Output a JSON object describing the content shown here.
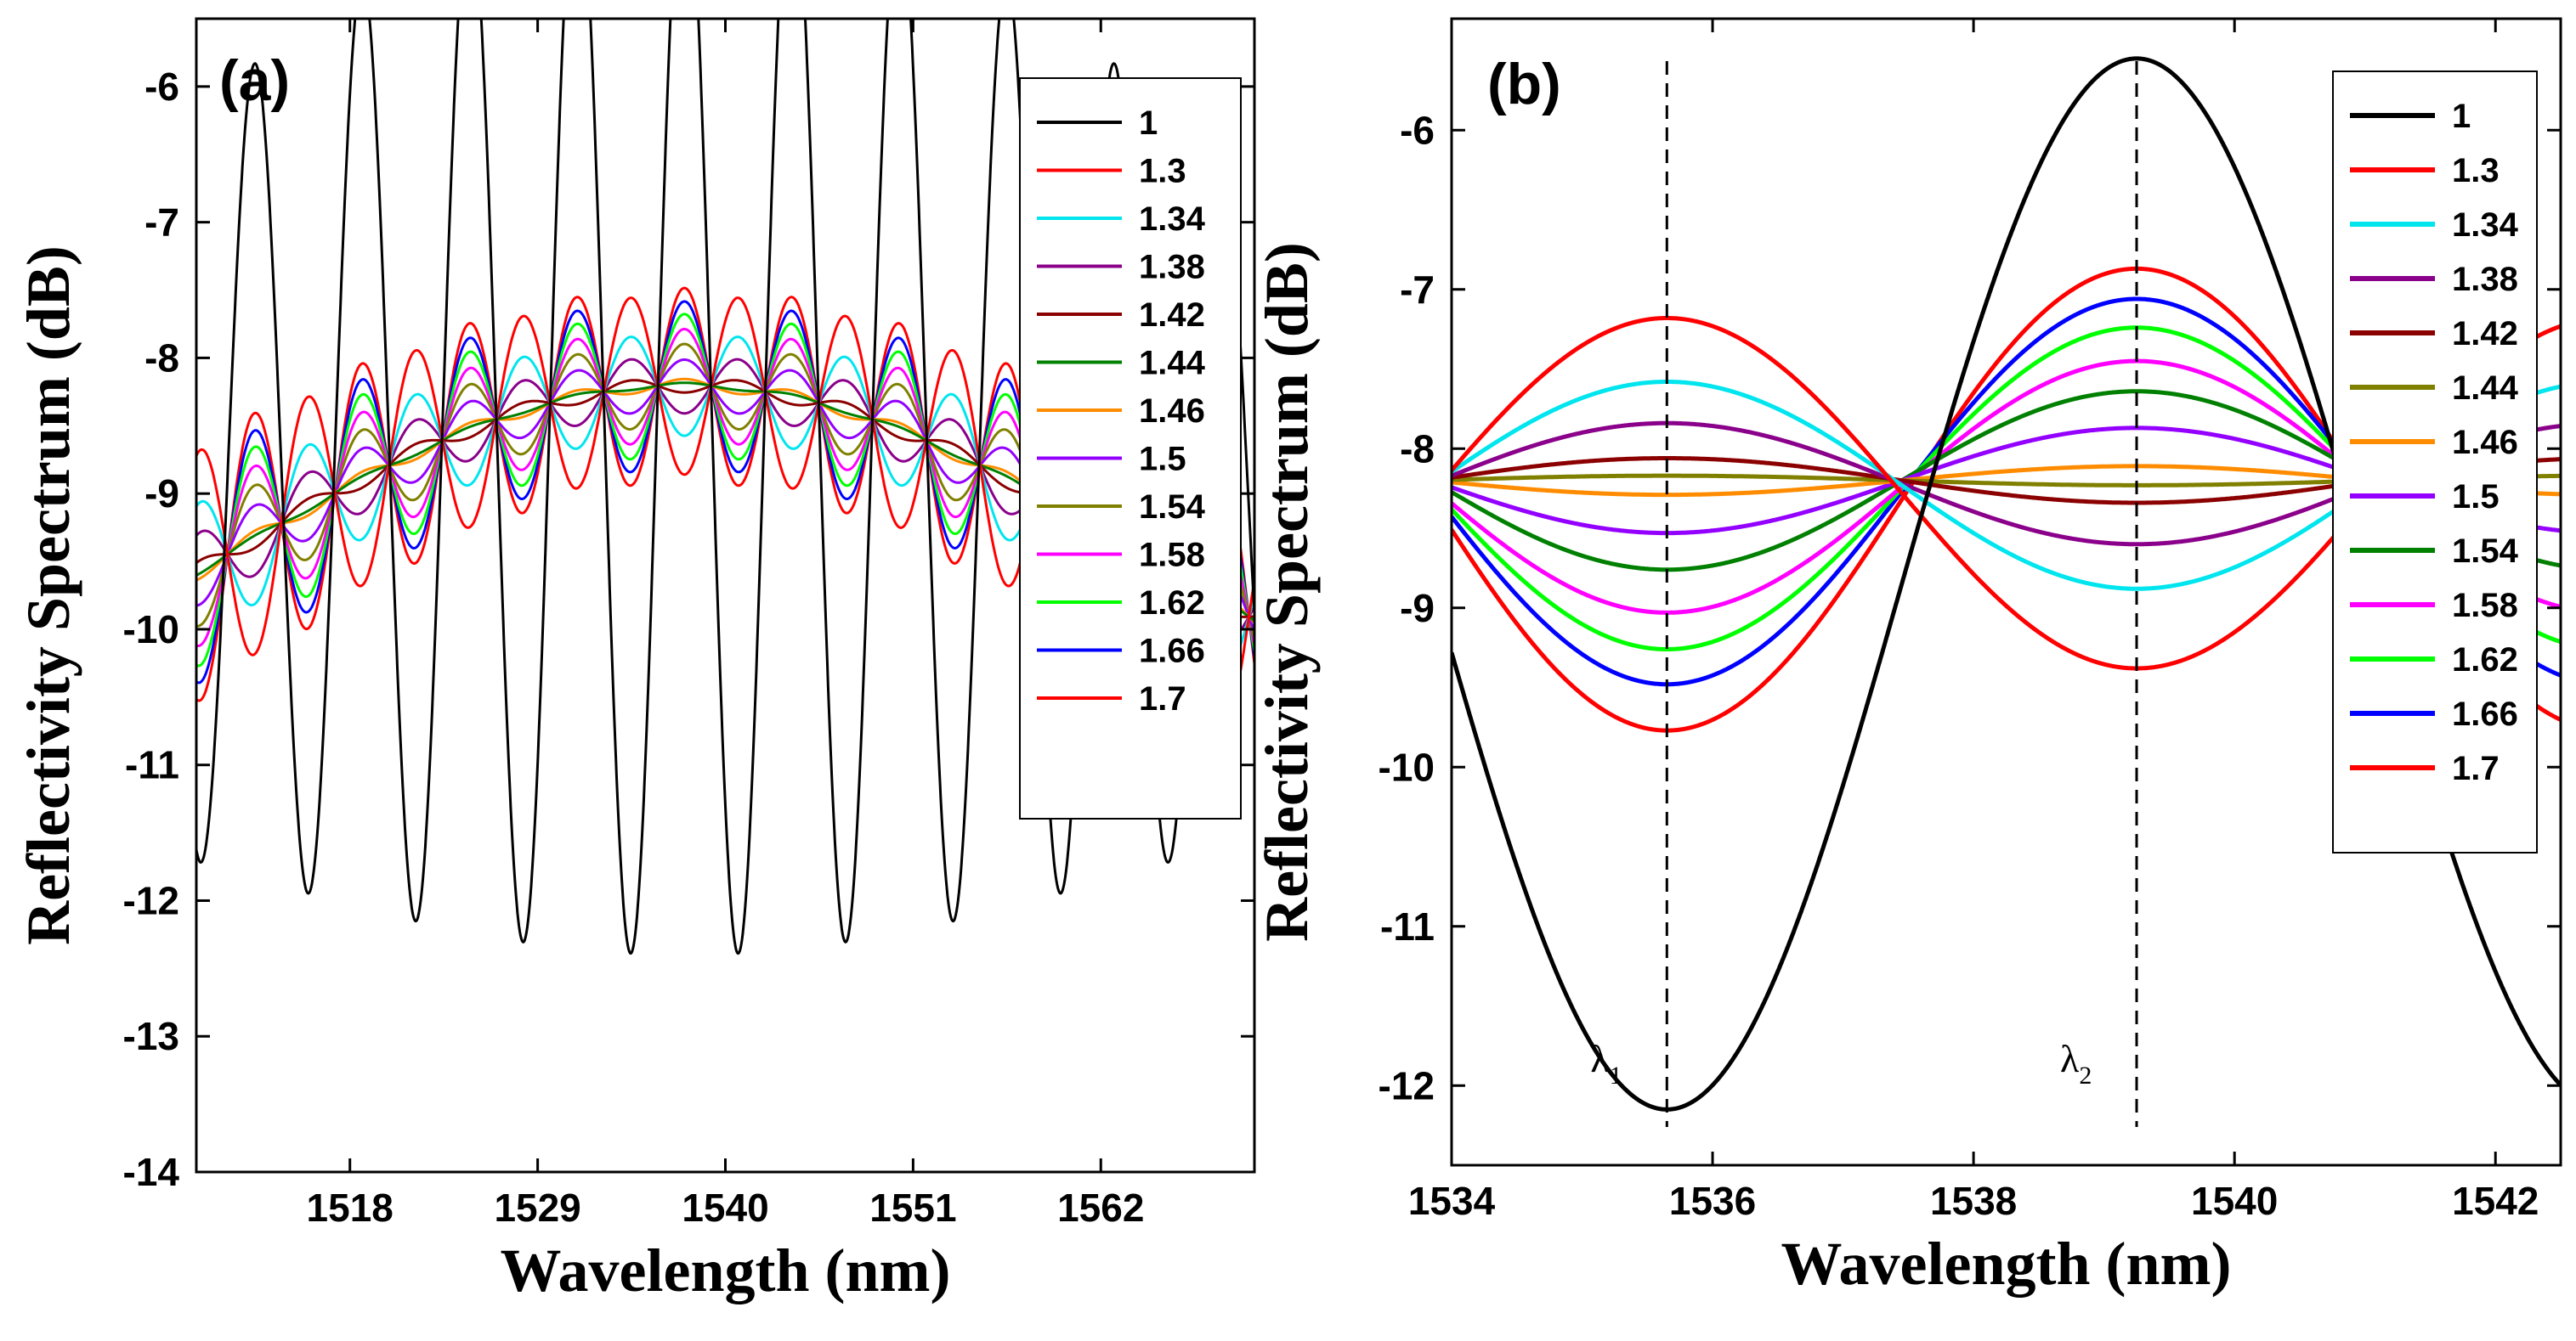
{
  "chart_data": [
    {
      "type": "line",
      "panel_label": "(a)",
      "xlabel": "Wavelength (nm)",
      "ylabel": "Reflectivity Spectrum (dB)",
      "xlim": [
        1509,
        1571
      ],
      "ylim": [
        -14,
        -5.5
      ],
      "xticks": [
        1518,
        1529,
        1540,
        1551,
        1562
      ],
      "xtick_labels": [
        "1518",
        "1529",
        "1540",
        "1551",
        "1562"
      ],
      "yticks": [
        -14,
        -13,
        -12,
        -11,
        -10,
        -9,
        -8,
        -7,
        -6
      ],
      "ytick_labels": [
        "-14",
        "-13",
        "-12",
        "-11",
        "-10",
        "-9",
        "-8",
        "-7",
        "-6"
      ],
      "legend_position": "top-right",
      "model": {
        "x0": 1537.6,
        "period": 6.3,
        "sigma": 28,
        "amp_peak_black": 4.1,
        "fill_black_x": 1510.5
      },
      "series": [
        {
          "name": "1",
          "color": "#000000",
          "base": -8.3,
          "amp": 4.1,
          "phase": 0
        },
        {
          "name": "1.3",
          "color": "#ff0000",
          "base": -8.2,
          "amp": -1.2,
          "phase": 0.5
        },
        {
          "name": "1.34",
          "color": "#00e5ee",
          "base": -8.2,
          "amp": -0.68,
          "phase": 0.5
        },
        {
          "name": "1.38",
          "color": "#8b008b",
          "base": -8.2,
          "amp": -0.38,
          "phase": 0.5
        },
        {
          "name": "1.42",
          "color": "#8b0000",
          "base": -8.2,
          "amp": -0.1,
          "phase": 0.5
        },
        {
          "name": "1.44",
          "color": "#008000",
          "base": -8.2,
          "amp": 0.03,
          "phase": 0.5
        },
        {
          "name": "1.46",
          "color": "#ff8c00",
          "base": -8.2,
          "amp": 0.08,
          "phase": 0.5
        },
        {
          "name": "1.5",
          "color": "#9400ff",
          "base": -8.2,
          "amp": 0.34,
          "phase": 0.5
        },
        {
          "name": "1.54",
          "color": "#808000",
          "base": -8.2,
          "amp": 0.55,
          "phase": 0.5
        },
        {
          "name": "1.58",
          "color": "#ff00ff",
          "base": -8.2,
          "amp": 0.75,
          "phase": 0.5
        },
        {
          "name": "1.62",
          "color": "#00ff00",
          "base": -8.2,
          "amp": 0.95,
          "phase": 0.5
        },
        {
          "name": "1.66",
          "color": "#0000ff",
          "base": -8.2,
          "amp": 1.12,
          "phase": 0.5
        },
        {
          "name": "1.7",
          "color": "#ff0000",
          "base": -8.2,
          "amp": 1.3,
          "phase": 0.5
        }
      ]
    },
    {
      "type": "line",
      "panel_label": "(b)",
      "xlabel": "Wavelength (nm)",
      "ylabel": "Reflectivity Spectrum (dB)",
      "xlim": [
        1534,
        1542.5
      ],
      "ylim": [
        -12.5,
        -5.3
      ],
      "xticks": [
        1534,
        1536,
        1538,
        1540,
        1542
      ],
      "xtick_labels": [
        "1534",
        "1536",
        "1538",
        "1540",
        "1542"
      ],
      "yticks": [
        -12,
        -11,
        -10,
        -9,
        -8,
        -7,
        -6
      ],
      "ytick_labels": [
        "-12",
        "-11",
        "-10",
        "-9",
        "-8",
        "-7",
        "-6"
      ],
      "legend_position": "top-right",
      "markers": [
        {
          "x": 1535.65,
          "label": "λ",
          "sub": "1"
        },
        {
          "x": 1539.25,
          "label": "λ",
          "sub": "2"
        }
      ],
      "series": [
        {
          "name": "1",
          "color": "#000000",
          "base": -8.85,
          "amp": 3.3
        },
        {
          "name": "1.3",
          "color": "#ff0000",
          "base": -8.28,
          "amp": -1.1
        },
        {
          "name": "1.34",
          "color": "#00e5ee",
          "base": -8.23,
          "amp": -0.65
        },
        {
          "name": "1.38",
          "color": "#8b008b",
          "base": -8.22,
          "amp": -0.38
        },
        {
          "name": "1.42",
          "color": "#8b0000",
          "base": -8.2,
          "amp": -0.14
        },
        {
          "name": "1.44",
          "color": "#808000",
          "base": -8.2,
          "amp": -0.03
        },
        {
          "name": "1.46",
          "color": "#ff8c00",
          "base": -8.2,
          "amp": 0.09
        },
        {
          "name": "1.5",
          "color": "#9400ff",
          "base": -8.2,
          "amp": 0.33
        },
        {
          "name": "1.54",
          "color": "#008000",
          "base": -8.2,
          "amp": 0.56
        },
        {
          "name": "1.58",
          "color": "#ff00ff",
          "base": -8.24,
          "amp": 0.79
        },
        {
          "name": "1.62",
          "color": "#00ff00",
          "base": -8.25,
          "amp": 1.01
        },
        {
          "name": "1.66",
          "color": "#0000ff",
          "base": -8.27,
          "amp": 1.21
        },
        {
          "name": "1.7",
          "color": "#ff0000",
          "base": -8.32,
          "amp": 1.45
        }
      ]
    }
  ]
}
